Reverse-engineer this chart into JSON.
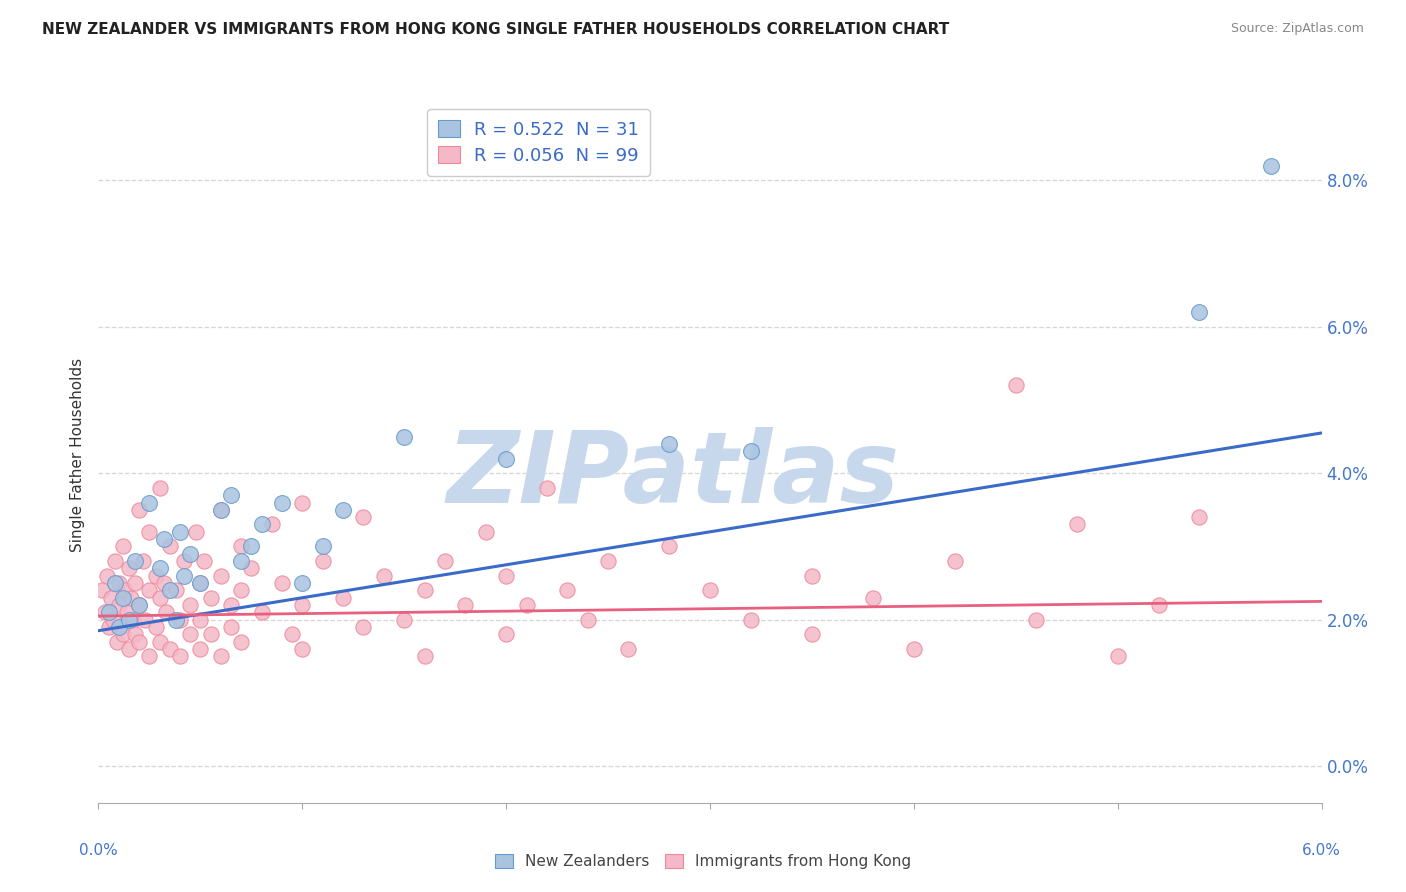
{
  "title": "NEW ZEALANDER VS IMMIGRANTS FROM HONG KONG SINGLE FATHER HOUSEHOLDS CORRELATION CHART",
  "source": "Source: ZipAtlas.com",
  "ylabel": "Single Father Households",
  "xlim": [
    0.0,
    6.0
  ],
  "ylim": [
    -0.5,
    9.0
  ],
  "ymin_visible": 0.0,
  "blue_R": 0.522,
  "blue_N": 31,
  "pink_R": 0.056,
  "pink_N": 99,
  "legend_label_blue": "New Zealanders",
  "legend_label_pink": "Immigrants from Hong Kong",
  "blue_color": "#a8c4e0",
  "pink_color": "#f4b8c8",
  "blue_edge_color": "#6699cc",
  "pink_edge_color": "#ee8899",
  "blue_line_color": "#3a6bc8",
  "pink_line_color": "#e86080",
  "blue_scatter": [
    [
      0.05,
      2.1
    ],
    [
      0.08,
      2.5
    ],
    [
      0.1,
      1.9
    ],
    [
      0.12,
      2.3
    ],
    [
      0.15,
      2.0
    ],
    [
      0.18,
      2.8
    ],
    [
      0.2,
      2.2
    ],
    [
      0.25,
      3.6
    ],
    [
      0.3,
      2.7
    ],
    [
      0.32,
      3.1
    ],
    [
      0.35,
      2.4
    ],
    [
      0.38,
      2.0
    ],
    [
      0.4,
      3.2
    ],
    [
      0.42,
      2.6
    ],
    [
      0.45,
      2.9
    ],
    [
      0.5,
      2.5
    ],
    [
      0.6,
      3.5
    ],
    [
      0.65,
      3.7
    ],
    [
      0.7,
      2.8
    ],
    [
      0.75,
      3.0
    ],
    [
      0.8,
      3.3
    ],
    [
      0.9,
      3.6
    ],
    [
      1.0,
      2.5
    ],
    [
      1.1,
      3.0
    ],
    [
      1.2,
      3.5
    ],
    [
      1.5,
      4.5
    ],
    [
      2.0,
      4.2
    ],
    [
      2.8,
      4.4
    ],
    [
      3.2,
      4.3
    ],
    [
      5.4,
      6.2
    ],
    [
      5.75,
      8.2
    ]
  ],
  "pink_scatter": [
    [
      0.02,
      2.4
    ],
    [
      0.03,
      2.1
    ],
    [
      0.04,
      2.6
    ],
    [
      0.05,
      1.9
    ],
    [
      0.06,
      2.3
    ],
    [
      0.07,
      2.0
    ],
    [
      0.08,
      2.8
    ],
    [
      0.09,
      1.7
    ],
    [
      0.1,
      2.5
    ],
    [
      0.1,
      2.2
    ],
    [
      0.12,
      1.8
    ],
    [
      0.12,
      3.0
    ],
    [
      0.13,
      2.4
    ],
    [
      0.14,
      2.1
    ],
    [
      0.15,
      1.6
    ],
    [
      0.15,
      2.7
    ],
    [
      0.16,
      2.3
    ],
    [
      0.17,
      2.0
    ],
    [
      0.18,
      2.5
    ],
    [
      0.18,
      1.8
    ],
    [
      0.2,
      3.5
    ],
    [
      0.2,
      2.2
    ],
    [
      0.2,
      1.7
    ],
    [
      0.22,
      2.8
    ],
    [
      0.23,
      2.0
    ],
    [
      0.25,
      3.2
    ],
    [
      0.25,
      2.4
    ],
    [
      0.25,
      1.5
    ],
    [
      0.28,
      2.6
    ],
    [
      0.28,
      1.9
    ],
    [
      0.3,
      3.8
    ],
    [
      0.3,
      2.3
    ],
    [
      0.3,
      1.7
    ],
    [
      0.32,
      2.5
    ],
    [
      0.33,
      2.1
    ],
    [
      0.35,
      1.6
    ],
    [
      0.35,
      3.0
    ],
    [
      0.38,
      2.4
    ],
    [
      0.4,
      2.0
    ],
    [
      0.4,
      1.5
    ],
    [
      0.42,
      2.8
    ],
    [
      0.45,
      2.2
    ],
    [
      0.45,
      1.8
    ],
    [
      0.48,
      3.2
    ],
    [
      0.5,
      2.5
    ],
    [
      0.5,
      2.0
    ],
    [
      0.5,
      1.6
    ],
    [
      0.52,
      2.8
    ],
    [
      0.55,
      2.3
    ],
    [
      0.55,
      1.8
    ],
    [
      0.6,
      3.5
    ],
    [
      0.6,
      2.6
    ],
    [
      0.6,
      1.5
    ],
    [
      0.65,
      2.2
    ],
    [
      0.65,
      1.9
    ],
    [
      0.7,
      3.0
    ],
    [
      0.7,
      2.4
    ],
    [
      0.7,
      1.7
    ],
    [
      0.75,
      2.7
    ],
    [
      0.8,
      2.1
    ],
    [
      0.85,
      3.3
    ],
    [
      0.9,
      2.5
    ],
    [
      0.95,
      1.8
    ],
    [
      1.0,
      3.6
    ],
    [
      1.0,
      2.2
    ],
    [
      1.0,
      1.6
    ],
    [
      1.1,
      2.8
    ],
    [
      1.2,
      2.3
    ],
    [
      1.3,
      3.4
    ],
    [
      1.3,
      1.9
    ],
    [
      1.4,
      2.6
    ],
    [
      1.5,
      2.0
    ],
    [
      1.6,
      2.4
    ],
    [
      1.6,
      1.5
    ],
    [
      1.7,
      2.8
    ],
    [
      1.8,
      2.2
    ],
    [
      1.9,
      3.2
    ],
    [
      2.0,
      2.6
    ],
    [
      2.0,
      1.8
    ],
    [
      2.1,
      2.2
    ],
    [
      2.2,
      3.8
    ],
    [
      2.3,
      2.4
    ],
    [
      2.4,
      2.0
    ],
    [
      2.5,
      2.8
    ],
    [
      2.6,
      1.6
    ],
    [
      2.8,
      3.0
    ],
    [
      3.0,
      2.4
    ],
    [
      3.2,
      2.0
    ],
    [
      3.5,
      2.6
    ],
    [
      3.5,
      1.8
    ],
    [
      3.8,
      2.3
    ],
    [
      4.0,
      1.6
    ],
    [
      4.2,
      2.8
    ],
    [
      4.5,
      5.2
    ],
    [
      4.6,
      2.0
    ],
    [
      4.8,
      3.3
    ],
    [
      5.0,
      1.5
    ],
    [
      5.2,
      2.2
    ],
    [
      5.4,
      3.4
    ]
  ],
  "watermark_zip": "ZIP",
  "watermark_atlas": "atlas",
  "watermark_color": "#c8d8ec",
  "background_color": "#ffffff",
  "grid_color": "#cccccc",
  "title_color": "#222222",
  "tick_label_color": "#4477cc",
  "ylabel_color": "#333333"
}
